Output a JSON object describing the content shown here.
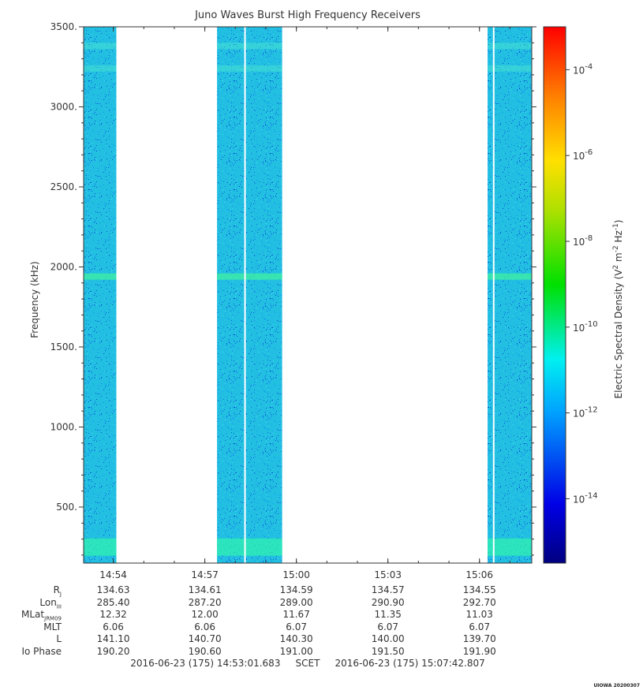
{
  "chart_data": {
    "type": "heatmap",
    "title": "Juno Waves Burst High Frequency Receivers",
    "ylabel": "Frequency (kHz)",
    "yticks": [
      "3500.",
      "3000.",
      "2500.",
      "2000.",
      "1500.",
      "1000.",
      "500."
    ],
    "ytick_values": [
      3500,
      3000,
      2500,
      2000,
      1500,
      1000,
      500
    ],
    "ylim": [
      150,
      3500
    ],
    "xticks": [
      "14:54",
      "14:57",
      "15:00",
      "15:03",
      "15:06"
    ],
    "xlim": [
      "14:53:01.683",
      "15:07:42.807"
    ],
    "data_intervals": [
      [
        "14:53:01.683",
        "14:54:06"
      ],
      [
        "14:57:24",
        "14:59:32"
      ],
      [
        "15:06:16",
        "15:07:42.807"
      ]
    ],
    "emission_bands_khz": [
      250,
      1940,
      3380,
      3240
    ],
    "background_level": "1e-12",
    "colorbar": {
      "label": "Electric Spectral Density (V",
      "label_sup1": "2",
      "label_mid": " m",
      "label_sup2": "-2",
      "label_mid2": " Hz",
      "label_sup3": "-1",
      "label_end": ")",
      "ticks": [
        {
          "base": "10",
          "exp": "-4"
        },
        {
          "base": "10",
          "exp": "-6"
        },
        {
          "base": "10",
          "exp": "-8"
        },
        {
          "base": "10",
          "exp": "-10"
        },
        {
          "base": "10",
          "exp": "-12"
        },
        {
          "base": "10",
          "exp": "-14"
        }
      ],
      "tick_exponents": [
        -4,
        -6,
        -8,
        -10,
        -12,
        -14
      ],
      "range_exponents": [
        -15.5,
        -3.0
      ],
      "scale": "log"
    }
  },
  "ephemeris": {
    "rows": [
      {
        "name": "R",
        "sub": "J",
        "values": [
          "134.63",
          "134.61",
          "134.59",
          "134.57",
          "134.55"
        ]
      },
      {
        "name": "Lon",
        "sub": "III",
        "values": [
          "285.40",
          "287.20",
          "289.00",
          "290.90",
          "292.70"
        ]
      },
      {
        "name": "MLat",
        "sub": "JRM09",
        "values": [
          "12.32",
          "12.00",
          "11.67",
          "11.35",
          "11.03"
        ]
      },
      {
        "name": "MLT",
        "sub": "",
        "values": [
          "6.06",
          "6.06",
          "6.07",
          "6.07",
          "6.07"
        ]
      },
      {
        "name": "L",
        "sub": "",
        "values": [
          "141.10",
          "140.70",
          "140.30",
          "140.00",
          "139.70"
        ]
      },
      {
        "name": "Io Phase",
        "sub": "",
        "values": [
          "190.20",
          "190.60",
          "191.00",
          "191.50",
          "191.90"
        ]
      }
    ]
  },
  "footer": {
    "start": "2016-06-23 (175) 14:53:01.683",
    "scet": "SCET",
    "end": "2016-06-23 (175) 15:07:42.807"
  },
  "stamp": "UIOWA 20200307"
}
